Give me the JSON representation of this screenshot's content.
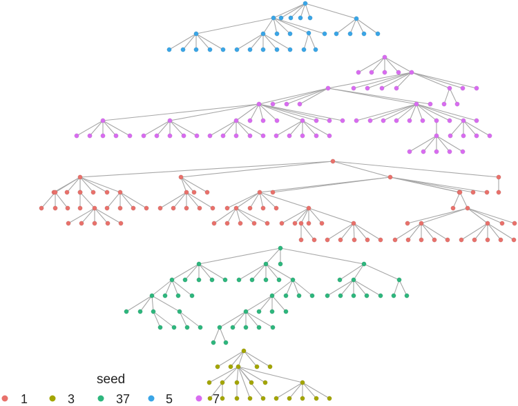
{
  "legend": {
    "title": "seed",
    "entries": [
      {
        "label": "1",
        "color": "#E8716B"
      },
      {
        "label": "3",
        "color": "#A3A500"
      },
      {
        "label": "37",
        "color": "#2EB67D"
      },
      {
        "label": "5",
        "color": "#3AA5E6"
      },
      {
        "label": "7",
        "color": "#D86CF0"
      }
    ]
  },
  "edge_color": "#A6A6A6"
}
